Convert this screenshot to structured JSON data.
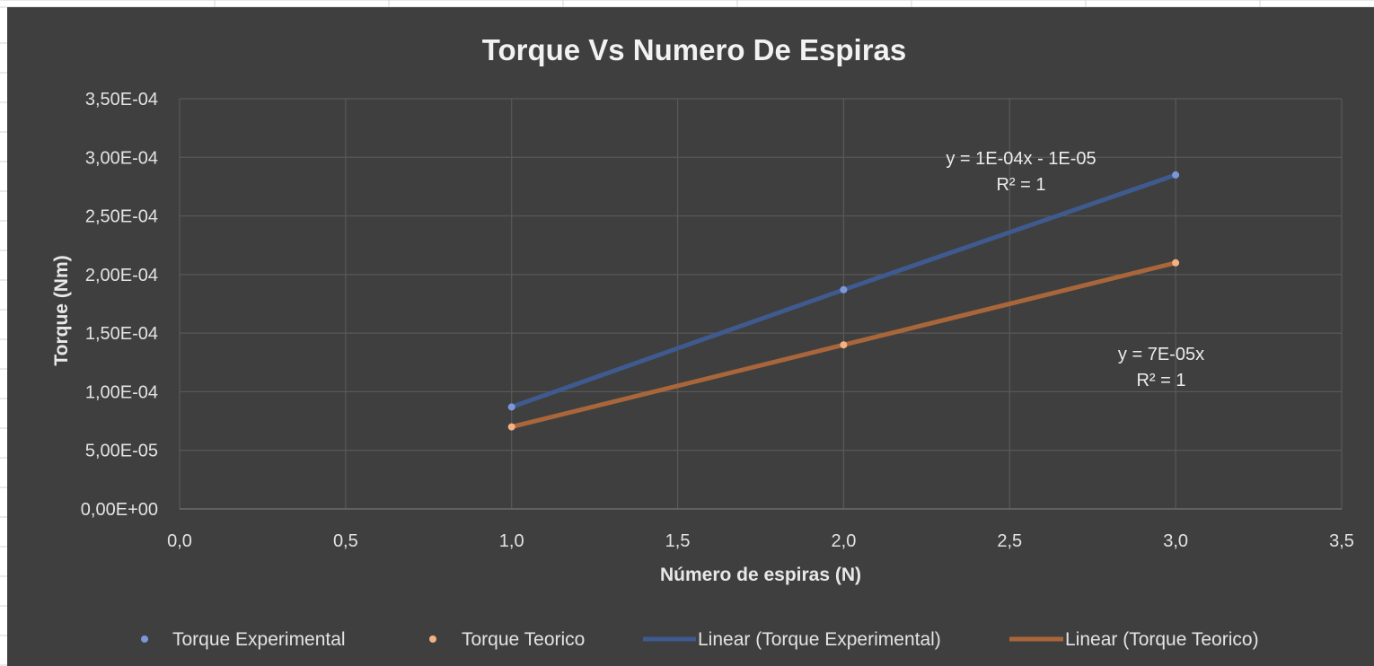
{
  "chart_data": {
    "type": "scatter",
    "title": "Torque Vs Numero De Espiras",
    "xlabel": "Número de espiras (N)",
    "ylabel": "Torque (Nm)",
    "xlim": [
      0,
      3.5
    ],
    "ylim": [
      0,
      0.00035
    ],
    "x_ticks": [
      0,
      0.5,
      1,
      1.5,
      2,
      2.5,
      3,
      3.5
    ],
    "x_tick_labels": [
      "0,0",
      "0,5",
      "1,0",
      "1,5",
      "2,0",
      "2,5",
      "3,0",
      "3,5"
    ],
    "y_ticks": [
      0,
      5e-05,
      0.0001,
      0.00015,
      0.0002,
      0.00025,
      0.0003,
      0.00035
    ],
    "y_tick_labels": [
      "0,00E+00",
      "5,00E-05",
      "1,00E-04",
      "1,50E-04",
      "2,00E-04",
      "2,50E-04",
      "3,00E-04",
      "3,50E-04"
    ],
    "grid": true,
    "legend_position": "bottom",
    "series": [
      {
        "name": "Torque Experimental",
        "x": [
          1,
          2,
          3
        ],
        "y": [
          8.7e-05,
          0.000187,
          0.000285
        ],
        "color": "#7b96d9",
        "trendline": {
          "name": "Linear (Torque Experimental)",
          "color": "#3e5a8f",
          "equation": "y = 1E-04x - 1E-05",
          "r2": "R² = 1"
        }
      },
      {
        "name": "Torque Teorico",
        "x": [
          1,
          2,
          3
        ],
        "y": [
          7e-05,
          0.00014,
          0.00021
        ],
        "color": "#f4b183",
        "trendline": {
          "name": "Linear (Torque Teorico)",
          "color": "#a9663a",
          "equation": "y = 7E-05x",
          "r2": "R² = 1"
        }
      }
    ],
    "background": "#3f3f3f",
    "grid_color": "#595959"
  }
}
